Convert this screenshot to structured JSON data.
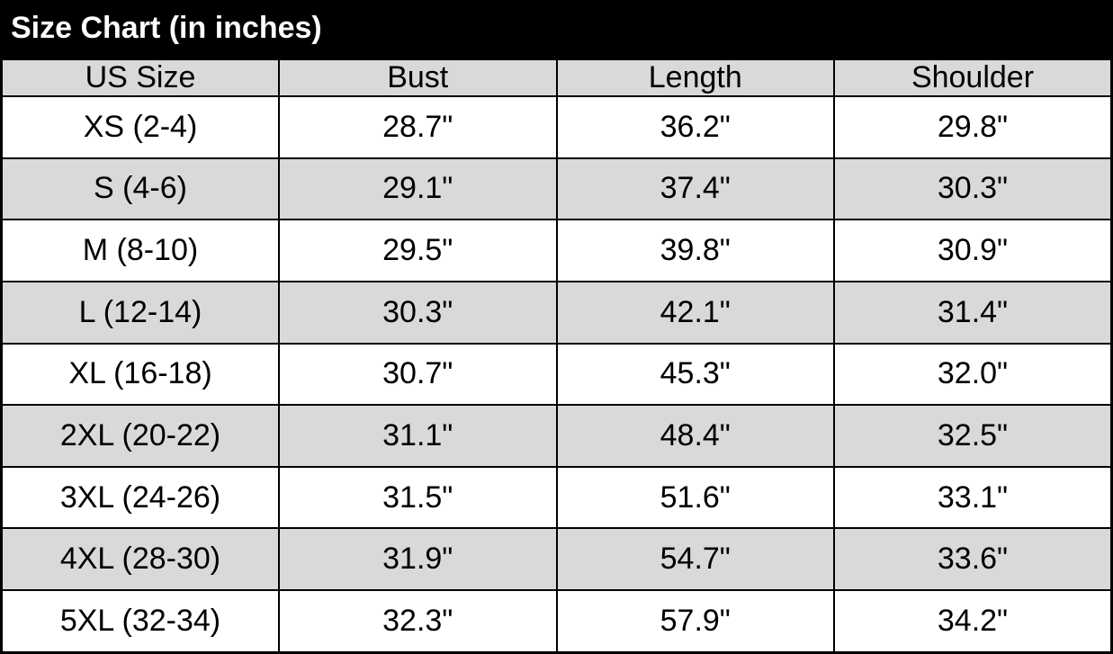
{
  "title": "Size Chart (in inches)",
  "colors": {
    "title_bg": "#000000",
    "title_fg": "#ffffff",
    "header_bg": "#d9d9d9",
    "row_bg": "#ffffff",
    "row_alt_bg": "#d9d9d9",
    "border": "#000000",
    "text": "#000000"
  },
  "chart_data": {
    "type": "table",
    "title": "Size Chart (in inches)",
    "columns": [
      "US Size",
      "Bust",
      "Length",
      "Shoulder"
    ],
    "rows": [
      {
        "us_size": "XS (2-4)",
        "bust": "28.7\"",
        "length": "36.2\"",
        "shoulder": "29.8\""
      },
      {
        "us_size": "S (4-6)",
        "bust": "29.1\"",
        "length": "37.4\"",
        "shoulder": "30.3\""
      },
      {
        "us_size": "M (8-10)",
        "bust": "29.5\"",
        "length": "39.8\"",
        "shoulder": "30.9\""
      },
      {
        "us_size": "L (12-14)",
        "bust": "30.3\"",
        "length": "42.1\"",
        "shoulder": "31.4\""
      },
      {
        "us_size": "XL (16-18)",
        "bust": "30.7\"",
        "length": "45.3\"",
        "shoulder": "32.0\""
      },
      {
        "us_size": "2XL (20-22)",
        "bust": "31.1\"",
        "length": "48.4\"",
        "shoulder": "32.5\""
      },
      {
        "us_size": "3XL (24-26)",
        "bust": "31.5\"",
        "length": "51.6\"",
        "shoulder": "33.1\""
      },
      {
        "us_size": "4XL (28-30)",
        "bust": "31.9\"",
        "length": "54.7\"",
        "shoulder": "33.6\""
      },
      {
        "us_size": "5XL (32-34)",
        "bust": "32.3\"",
        "length": "57.9\"",
        "shoulder": "34.2\""
      }
    ],
    "layout": {
      "striped": true,
      "stripe_color": "#d9d9d9",
      "header_background": "#d9d9d9",
      "grid": true
    }
  }
}
